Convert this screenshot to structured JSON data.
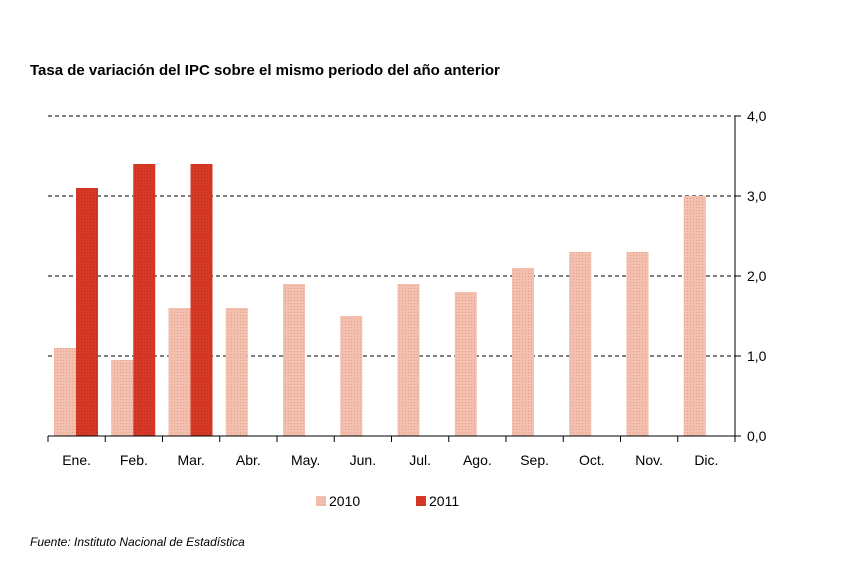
{
  "chart_data": {
    "type": "bar",
    "title": "Tasa de variación del IPC sobre el mismo periodo del año anterior",
    "categories": [
      "Ene.",
      "Feb.",
      "Mar.",
      "Abr.",
      "May.",
      "Jun.",
      "Jul.",
      "Ago.",
      "Sep.",
      "Oct.",
      "Nov.",
      "Dic."
    ],
    "series": [
      {
        "name": "2010",
        "values": [
          1.1,
          0.95,
          1.6,
          1.6,
          1.9,
          1.5,
          1.9,
          1.8,
          2.1,
          2.3,
          2.3,
          3.0
        ]
      },
      {
        "name": "2011",
        "values": [
          3.1,
          3.4,
          3.4,
          null,
          null,
          null,
          null,
          null,
          null,
          null,
          null,
          null
        ]
      }
    ],
    "ylim": [
      0,
      4
    ],
    "yticks": [
      "0,0",
      "1,0",
      "2,0",
      "3,0",
      "4,0"
    ],
    "y_axis_side": "right",
    "grid": "horizontal dashed",
    "legend_position": "bottom-center",
    "colors": {
      "2010": "#f3bfae",
      "2011": "#d63a27"
    },
    "source": "Fuente: Instituto Nacional de Estadística"
  }
}
